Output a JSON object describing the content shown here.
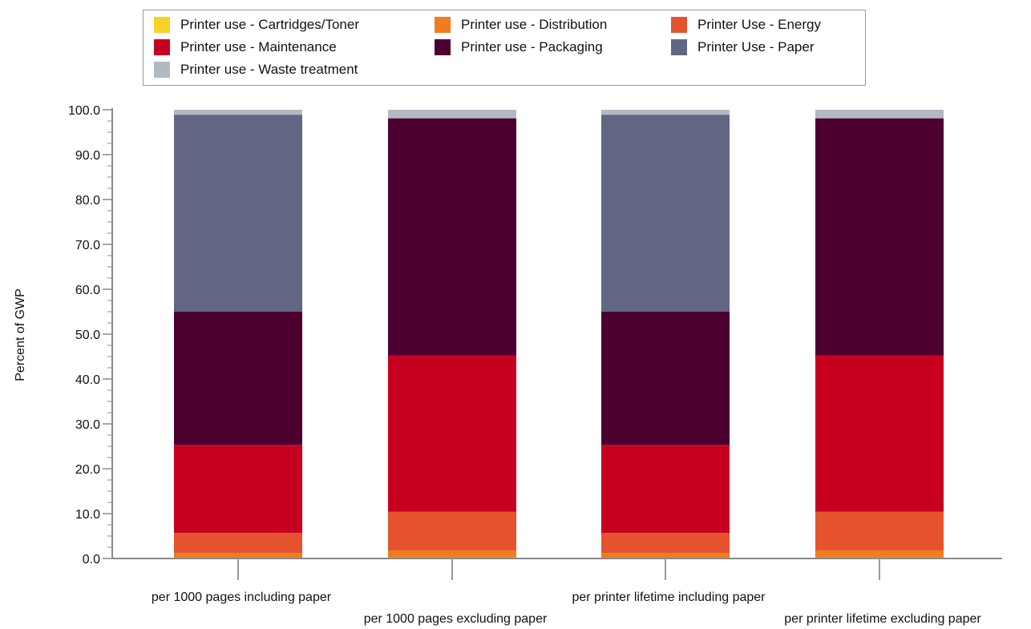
{
  "chart_data": {
    "type": "bar",
    "stacked": true,
    "ylabel": "Percent of GWP",
    "xlabel": "",
    "ylim": [
      0,
      100
    ],
    "yticks": [
      "0.0",
      "10.0",
      "20.0",
      "30.0",
      "40.0",
      "50.0",
      "60.0",
      "70.0",
      "80.0",
      "90.0",
      "100.0"
    ],
    "categories": [
      "per 1000 pages including paper",
      "per 1000 pages excluding paper",
      "per printer lifetime including paper",
      "per printer lifetime excluding paper"
    ],
    "legend_position": "top",
    "series": [
      {
        "name": "Printer use - Cartridges/Toner",
        "color": "#f5d328",
        "values": [
          0.1,
          0.2,
          0.1,
          0.2
        ]
      },
      {
        "name": "Printer use - Distribution",
        "color": "#f07c1e",
        "values": [
          1.1,
          1.6,
          1.1,
          1.6
        ]
      },
      {
        "name": "Printer Use - Energy",
        "color": "#e4532e",
        "values": [
          4.5,
          8.6,
          4.5,
          8.6
        ]
      },
      {
        "name": "Printer use - Maintenance",
        "color": "#c8001f",
        "values": [
          19.6,
          34.8,
          19.6,
          34.8
        ]
      },
      {
        "name": "Printer use - Packaging",
        "color": "#4b0030",
        "values": [
          29.7,
          52.9,
          29.7,
          52.9
        ]
      },
      {
        "name": "Printer Use - Paper",
        "color": "#616682",
        "values": [
          43.9,
          0,
          43.9,
          0
        ]
      },
      {
        "name": "Printer use - Waste treatment",
        "color": "#b2b9c3",
        "values": [
          1.1,
          1.9,
          1.1,
          1.9
        ]
      }
    ]
  }
}
